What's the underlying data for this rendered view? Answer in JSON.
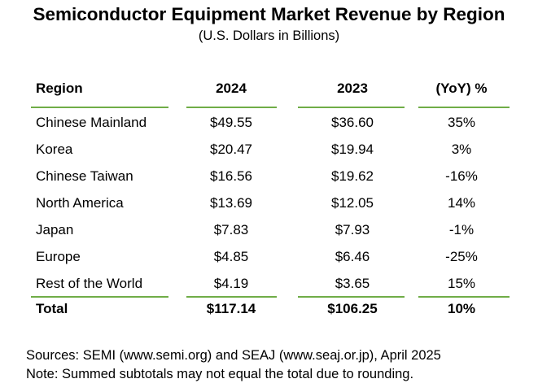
{
  "chart_data": {
    "type": "table",
    "title": "Semiconductor Equipment Market Revenue by Region",
    "subtitle": "(U.S. Dollars in Billions)",
    "columns": [
      "Region",
      "2024",
      "2023",
      "(YoY) %"
    ],
    "rows": [
      [
        "Chinese Mainland",
        "$49.55",
        "$36.60",
        "35%"
      ],
      [
        "Korea",
        "$20.47",
        "$19.94",
        "3%"
      ],
      [
        "Chinese Taiwan",
        "$16.56",
        "$19.62",
        "-16%"
      ],
      [
        "North America",
        "$13.69",
        "$12.05",
        "14%"
      ],
      [
        "Japan",
        "$7.83",
        "$7.93",
        "-1%"
      ],
      [
        "Europe",
        "$4.85",
        "$6.46",
        "-25%"
      ],
      [
        "Rest of the World",
        "$4.19",
        "$3.65",
        "15%"
      ]
    ],
    "total": [
      "Total",
      "$117.14",
      "$106.25",
      "10%"
    ],
    "values_2024": [
      49.55,
      20.47,
      16.56,
      13.69,
      7.83,
      4.85,
      4.19
    ],
    "values_2023": [
      36.6,
      19.94,
      19.62,
      12.05,
      7.93,
      6.46,
      3.65
    ],
    "yoy_percent": [
      35,
      3,
      -16,
      14,
      -1,
      -25,
      15
    ],
    "total_2024": 117.14,
    "total_2023": 106.25,
    "total_yoy_percent": 10
  },
  "footnotes": {
    "sources": "Sources: SEMI (www.semi.org) and SEAJ (www.seaj.or.jp), April 2025",
    "note": "Note: Summed subtotals may not equal the total due to rounding."
  },
  "colors": {
    "rule": "#70ad47",
    "text": "#000000",
    "background": "#ffffff"
  }
}
